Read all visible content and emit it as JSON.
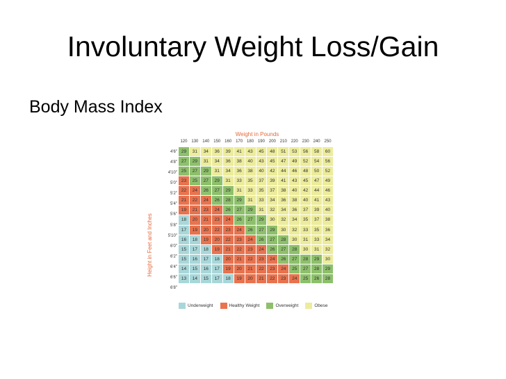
{
  "slide": {
    "title": "Involuntary Weight Loss/Gain",
    "subtitle": "Body Mass Index"
  },
  "chart_data": {
    "type": "heatmap",
    "title": "Weight in Pounds",
    "xlabel": "Weight in Pounds",
    "ylabel": "Height in Feet and Inches",
    "x": [
      "120",
      "130",
      "140",
      "150",
      "160",
      "170",
      "180",
      "190",
      "200",
      "210",
      "220",
      "230",
      "240",
      "250"
    ],
    "y": [
      "4'6\"",
      "4'8\"",
      "4'10\"",
      "5'0\"",
      "5'2\"",
      "5'4\"",
      "5'6\"",
      "5'8\"",
      "5'10\"",
      "6'0\"",
      "6'2\"",
      "6'4\"",
      "6'6\"",
      "6'8\""
    ],
    "values": [
      [
        29,
        31,
        34,
        36,
        39,
        41,
        43,
        45,
        48,
        51,
        53,
        56,
        58,
        60
      ],
      [
        27,
        29,
        31,
        34,
        36,
        38,
        40,
        43,
        45,
        47,
        49,
        52,
        54,
        56
      ],
      [
        25,
        27,
        29,
        31,
        34,
        36,
        38,
        40,
        42,
        44,
        46,
        48,
        50,
        52
      ],
      [
        23,
        25,
        27,
        29,
        31,
        33,
        35,
        37,
        39,
        41,
        43,
        45,
        47,
        49
      ],
      [
        22,
        24,
        26,
        27,
        29,
        31,
        33,
        35,
        37,
        38,
        40,
        42,
        44,
        46
      ],
      [
        21,
        22,
        24,
        26,
        28,
        29,
        31,
        33,
        34,
        36,
        38,
        40,
        41,
        43
      ],
      [
        19,
        21,
        23,
        24,
        26,
        27,
        29,
        31,
        32,
        34,
        36,
        37,
        39,
        40
      ],
      [
        18,
        20,
        21,
        23,
        24,
        26,
        27,
        29,
        30,
        32,
        34,
        35,
        37,
        38
      ],
      [
        17,
        19,
        20,
        22,
        23,
        24,
        26,
        27,
        29,
        30,
        32,
        33,
        35,
        36
      ],
      [
        16,
        18,
        19,
        20,
        22,
        23,
        24,
        26,
        27,
        28,
        30,
        31,
        33,
        34
      ],
      [
        15,
        17,
        18,
        19,
        21,
        22,
        23,
        24,
        26,
        27,
        28,
        30,
        31,
        32
      ],
      [
        15,
        16,
        17,
        18,
        20,
        21,
        22,
        23,
        24,
        26,
        27,
        28,
        29,
        30
      ],
      [
        14,
        15,
        16,
        17,
        19,
        20,
        21,
        22,
        23,
        24,
        25,
        27,
        28,
        29
      ],
      [
        13,
        14,
        15,
        17,
        18,
        19,
        20,
        21,
        22,
        23,
        24,
        25,
        26,
        28
      ]
    ],
    "categories_legend": [
      {
        "name": "Underweight",
        "color": "#a9d7d9"
      },
      {
        "name": "Healthy Weight",
        "color": "#e8734f"
      },
      {
        "name": "Overweight",
        "color": "#8ec06c"
      },
      {
        "name": "Obese",
        "color": "#ecec9c"
      }
    ],
    "thresholds": {
      "underweight_below": 19,
      "healthy_below": 25,
      "overweight_below": 30
    },
    "legend_position": "bottom"
  }
}
